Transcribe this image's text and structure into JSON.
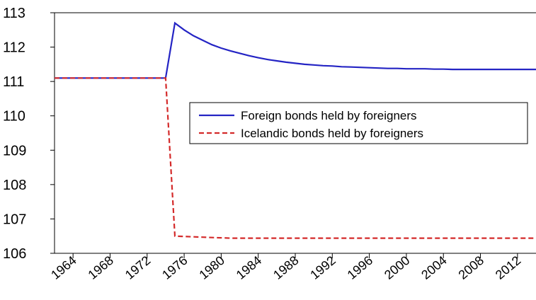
{
  "chart_data": {
    "type": "line",
    "x": [
      1962,
      1963,
      1964,
      1965,
      1966,
      1967,
      1968,
      1969,
      1970,
      1971,
      1972,
      1973,
      1974,
      1975,
      1976,
      1977,
      1978,
      1979,
      1980,
      1981,
      1982,
      1983,
      1984,
      1985,
      1986,
      1987,
      1988,
      1989,
      1990,
      1991,
      1992,
      1993,
      1994,
      1995,
      1996,
      1997,
      1998,
      1999,
      2000,
      2001,
      2002,
      2003,
      2004,
      2005,
      2006,
      2007,
      2008,
      2009,
      2010,
      2011,
      2012,
      2013,
      2014
    ],
    "series": [
      {
        "name": "Foreign bonds held by foreigners",
        "color": "#2424c4",
        "dash": false,
        "values": [
          111.1,
          111.1,
          111.1,
          111.1,
          111.1,
          111.1,
          111.1,
          111.1,
          111.1,
          111.1,
          111.1,
          111.1,
          111.1,
          112.7,
          112.5,
          112.33,
          112.2,
          112.07,
          111.97,
          111.89,
          111.82,
          111.75,
          111.69,
          111.64,
          111.6,
          111.56,
          111.53,
          111.5,
          111.48,
          111.46,
          111.45,
          111.43,
          111.42,
          111.41,
          111.4,
          111.39,
          111.38,
          111.38,
          111.37,
          111.37,
          111.37,
          111.36,
          111.36,
          111.35,
          111.35,
          111.35,
          111.35,
          111.35,
          111.35,
          111.35,
          111.35,
          111.35,
          111.35
        ]
      },
      {
        "name": "Icelandic bonds held by foreigners",
        "color": "#d42a2a",
        "dash": true,
        "values": [
          111.1,
          111.1,
          111.1,
          111.1,
          111.1,
          111.1,
          111.1,
          111.1,
          111.1,
          111.1,
          111.1,
          111.1,
          111.1,
          106.5,
          106.49,
          106.48,
          106.47,
          106.46,
          106.45,
          106.44,
          106.44,
          106.44,
          106.44,
          106.44,
          106.44,
          106.44,
          106.44,
          106.44,
          106.44,
          106.44,
          106.44,
          106.44,
          106.44,
          106.44,
          106.44,
          106.44,
          106.44,
          106.44,
          106.44,
          106.44,
          106.44,
          106.44,
          106.44,
          106.44,
          106.44,
          106.44,
          106.44,
          106.44,
          106.44,
          106.44,
          106.44,
          106.44,
          106.44
        ]
      }
    ],
    "xlim": [
      1962,
      2014
    ],
    "xticks": [
      1964,
      1968,
      1972,
      1976,
      1980,
      1984,
      1988,
      1992,
      1996,
      2000,
      2004,
      2008,
      2012
    ],
    "ylim": [
      106,
      113
    ],
    "yticks": [
      106,
      107,
      108,
      109,
      110,
      111,
      112,
      113
    ]
  }
}
